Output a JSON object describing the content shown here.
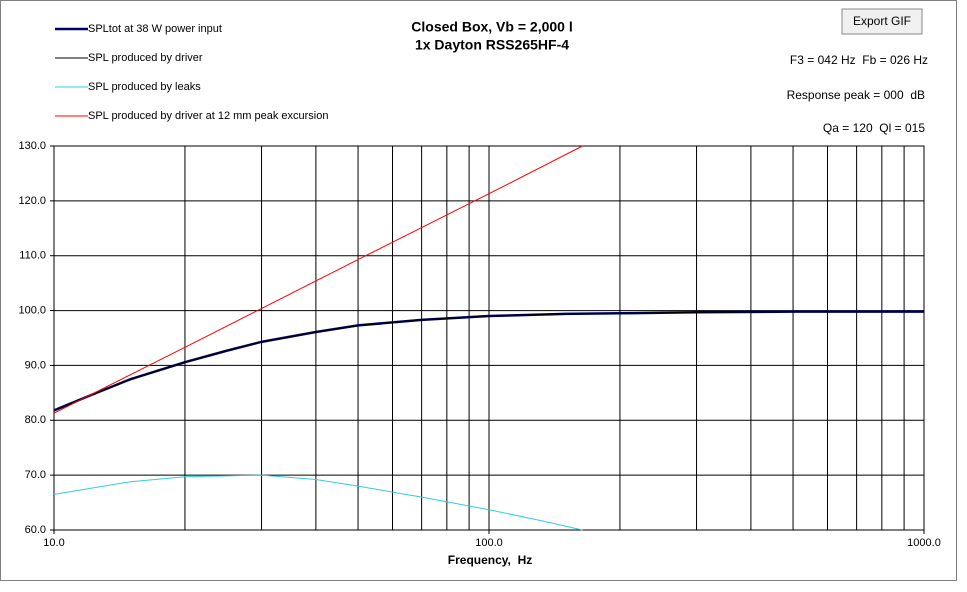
{
  "chart_data": {
    "type": "line",
    "title": "Closed Box, Vb = 2,000 l",
    "subtitle": "1x Dayton RSS265HF-4",
    "xlabel": "Frequency,  Hz",
    "log_x": true,
    "grid": true,
    "legend": "top-left",
    "xlim": [
      10,
      1000
    ],
    "xticks": [
      {
        "value": 10,
        "label": "10.0"
      },
      {
        "value": 100,
        "label": "100.0"
      },
      {
        "value": 1000,
        "label": "1000.0"
      }
    ],
    "x_minor_grid": [
      20,
      30,
      40,
      50,
      60,
      70,
      80,
      90,
      200,
      300,
      400,
      500,
      600,
      700,
      800,
      900
    ],
    "ylim": [
      60,
      130
    ],
    "yticks": [
      {
        "value": 60,
        "label": "60.0"
      },
      {
        "value": 70,
        "label": "70.0"
      },
      {
        "value": 80,
        "label": "80.0"
      },
      {
        "value": 90,
        "label": "90.0"
      },
      {
        "value": 100,
        "label": "100.0"
      },
      {
        "value": 110,
        "label": "110.0"
      },
      {
        "value": 120,
        "label": "120.0"
      },
      {
        "value": 130,
        "label": "130.0"
      }
    ],
    "series": [
      {
        "name": "SPLtot at 38 W power input",
        "color": "#000066",
        "width": 2.5,
        "x": [
          10,
          12,
          15,
          20,
          25,
          30,
          40,
          50,
          70,
          100,
          150,
          200,
          300,
          500,
          1000
        ],
        "values": [
          81.8,
          84.4,
          87.5,
          90.6,
          92.7,
          94.3,
          96.1,
          97.3,
          98.3,
          99.0,
          99.4,
          99.5,
          99.7,
          99.8,
          99.8
        ]
      },
      {
        "name": "SPL produced by driver",
        "color": "#000000",
        "width": 1,
        "x": [
          10,
          12,
          15,
          20,
          25,
          30,
          40,
          50,
          70,
          100,
          150,
          200,
          300,
          500,
          1000
        ],
        "values": [
          81.8,
          84.4,
          87.5,
          90.6,
          92.7,
          94.3,
          96.1,
          97.3,
          98.3,
          99.0,
          99.4,
          99.5,
          99.7,
          99.8,
          99.8
        ]
      },
      {
        "name": "SPL produced by leaks",
        "color": "#33CCDD",
        "width": 1,
        "x": [
          10,
          15,
          20,
          30,
          40,
          50,
          70,
          100,
          130,
          164
        ],
        "values": [
          66.5,
          68.8,
          69.7,
          70.0,
          69.2,
          68.0,
          66.0,
          63.7,
          61.8,
          60.0
        ]
      },
      {
        "name": "SPL produced by driver at 12 mm peak excursion",
        "color": "#FF0000",
        "width": 1,
        "x": [
          10,
          20,
          50,
          100,
          164
        ],
        "values": [
          81.3,
          93.3,
          109.3,
          121.3,
          130.0
        ]
      }
    ],
    "annotations": [
      "F3 = 042 Hz  Fb = 026 Hz",
      "Response peak = 000  dB",
      "Qa = 120  Ql = 015"
    ],
    "button": "Export GIF"
  }
}
